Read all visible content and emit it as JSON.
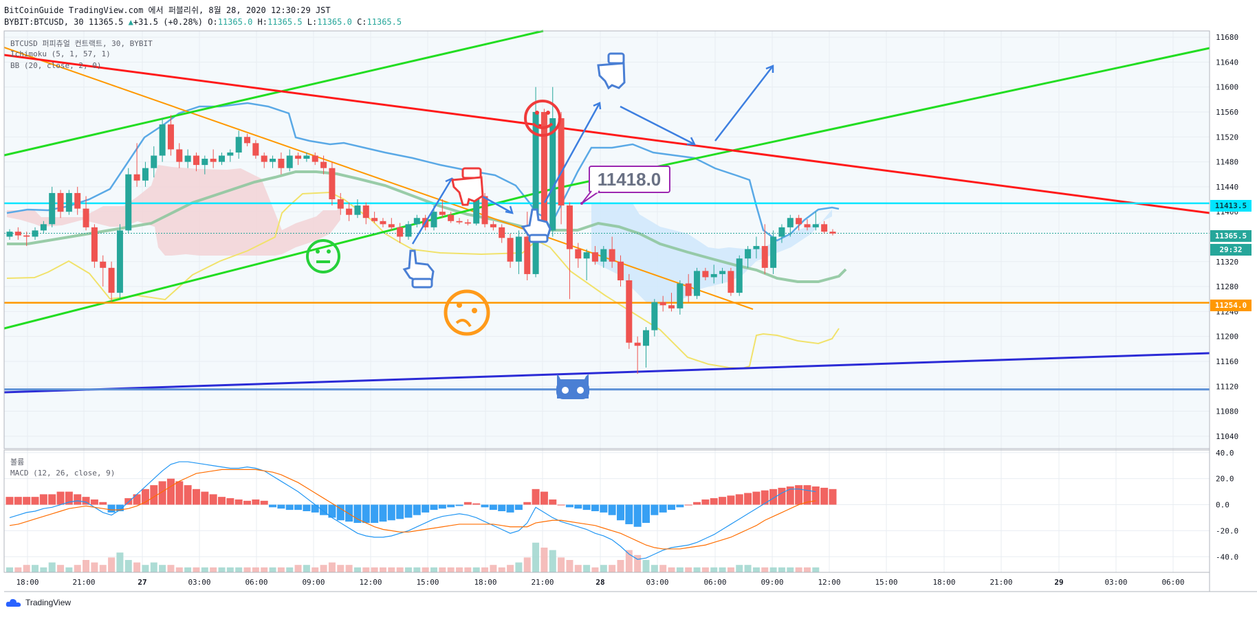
{
  "header": {
    "line1": "BitCoinGuide TradingView.com 에서 퍼블리쉬, 8월 28, 2020 12:30:29 JST",
    "symbol": "BYBIT:BTCUSD, 30",
    "last": "11365.5",
    "change": "+31.5 (+0.28%)",
    "o_label": "O:",
    "o": "11365.0",
    "h_label": "H:",
    "h": "11365.5",
    "l_label": "L:",
    "l": "11365.0",
    "c_label": "C:",
    "c": "11365.5"
  },
  "indicators": {
    "title": "BTCUSD 퍼피츄얼 컨트랙트, 30, BYBIT",
    "ichimoku": "Ichimoku (5, 1, 57, 1)",
    "bb": "BB (20, close, 2, 0)",
    "volume": "볼륨",
    "macd": "MACD (12, 26, close, 9)"
  },
  "footer": {
    "brand": "TradingView"
  },
  "colors": {
    "up": "#26a69a",
    "down": "#ef5350",
    "grid": "#e8edf2",
    "bg_tint": "#f4f9fc",
    "cyan": "#00e5ff",
    "orange": "#ff9800",
    "green_line": "#22dd22",
    "red_line": "#ff1a1a",
    "blue_line": "#2b2bd6",
    "bb": "#f1e26b",
    "cloud_red": "#f2d3d6",
    "cloud_blue": "#cfe8fb",
    "kijun": "#8fc79e",
    "bb_upper": "#5aa9e6",
    "macd": "#2196f3",
    "signal": "#ff6d00"
  },
  "chart_data": [
    {
      "type": "candlestick",
      "title": "BTCUSD 퍼피츄얼 컨트랙트, 30, BYBIT",
      "y_ticks": [
        11680,
        11640,
        11600,
        11560,
        11520,
        11480,
        11440,
        11400,
        11320,
        11280,
        11240,
        11200,
        11160,
        11120,
        11080,
        11040
      ],
      "ylim": [
        11020,
        11690
      ],
      "x_ticks": [
        "18:00",
        "21:00",
        "27",
        "03:00",
        "06:00",
        "09:00",
        "12:00",
        "15:00",
        "18:00",
        "21:00",
        "28",
        "03:00",
        "06:00",
        "09:00",
        "12:00",
        "15:00",
        "18:00",
        "21:00",
        "29",
        "03:00",
        "06:00"
      ],
      "price_labels": [
        {
          "text": "11413.5",
          "value": 11413.5,
          "color": "#00e5ff"
        },
        {
          "text": "11365.5",
          "value": 11365.5,
          "color": "#26a69a"
        },
        {
          "text": "29:32",
          "value": 11343,
          "color": "#26a69a"
        },
        {
          "text": "11254.0",
          "value": 11254,
          "color": "#ff9800"
        }
      ],
      "horizontal_lines": [
        {
          "value": 11413.5,
          "color": "#00e5ff"
        },
        {
          "value": 11254,
          "color": "#ff9800"
        },
        {
          "value": 11115,
          "color": "#5b8fd6"
        }
      ],
      "callout": {
        "text": "11418.0",
        "value": 11418
      },
      "candles": [
        [
          11360,
          11372,
          11355,
          11368
        ],
        [
          11368,
          11375,
          11355,
          11362
        ],
        [
          11362,
          11368,
          11345,
          11360
        ],
        [
          11360,
          11375,
          11355,
          11370
        ],
        [
          11370,
          11385,
          11365,
          11380
        ],
        [
          11380,
          11440,
          11375,
          11430
        ],
        [
          11430,
          11435,
          11390,
          11400
        ],
        [
          11400,
          11435,
          11395,
          11430
        ],
        [
          11430,
          11440,
          11395,
          11405
        ],
        [
          11405,
          11425,
          11370,
          11375
        ],
        [
          11375,
          11380,
          11310,
          11320
        ],
        [
          11320,
          11330,
          11280,
          11310
        ],
        [
          11310,
          11320,
          11255,
          11270
        ],
        [
          11270,
          11380,
          11260,
          11370
        ],
        [
          11370,
          11470,
          11365,
          11460
        ],
        [
          11460,
          11510,
          11440,
          11450
        ],
        [
          11450,
          11480,
          11440,
          11470
        ],
        [
          11470,
          11505,
          11455,
          11490
        ],
        [
          11490,
          11550,
          11480,
          11540
        ],
        [
          11540,
          11555,
          11490,
          11500
        ],
        [
          11500,
          11510,
          11470,
          11480
        ],
        [
          11480,
          11500,
          11470,
          11490
        ],
        [
          11490,
          11495,
          11465,
          11475
        ],
        [
          11475,
          11490,
          11460,
          11485
        ],
        [
          11485,
          11500,
          11470,
          11480
        ],
        [
          11480,
          11495,
          11475,
          11490
        ],
        [
          11490,
          11500,
          11480,
          11495
        ],
        [
          11495,
          11530,
          11485,
          11520
        ],
        [
          11520,
          11525,
          11505,
          11510
        ],
        [
          11510,
          11515,
          11485,
          11490
        ],
        [
          11490,
          11495,
          11470,
          11480
        ],
        [
          11480,
          11490,
          11470,
          11485
        ],
        [
          11485,
          11495,
          11460,
          11470
        ],
        [
          11470,
          11500,
          11465,
          11490
        ],
        [
          11490,
          11495,
          11475,
          11485
        ],
        [
          11485,
          11495,
          11480,
          11490
        ],
        [
          11490,
          11495,
          11475,
          11480
        ],
        [
          11480,
          11490,
          11460,
          11470
        ],
        [
          11470,
          11480,
          11410,
          11420
        ],
        [
          11420,
          11430,
          11395,
          11405
        ],
        [
          11405,
          11415,
          11385,
          11395
        ],
        [
          11395,
          11420,
          11390,
          11410
        ],
        [
          11410,
          11415,
          11380,
          11390
        ],
        [
          11390,
          11400,
          11382,
          11385
        ],
        [
          11385,
          11390,
          11375,
          11380
        ],
        [
          11380,
          11390,
          11370,
          11375
        ],
        [
          11375,
          11382,
          11350,
          11360
        ],
        [
          11360,
          11385,
          11355,
          11380
        ],
        [
          11380,
          11395,
          11375,
          11390
        ],
        [
          11390,
          11395,
          11370,
          11375
        ],
        [
          11375,
          11410,
          11370,
          11400
        ],
        [
          11400,
          11420,
          11390,
          11395
        ],
        [
          11395,
          11400,
          11382,
          11385
        ],
        [
          11385,
          11390,
          11380,
          11383
        ],
        [
          11383,
          11388,
          11378,
          11381
        ],
        [
          11381,
          11430,
          11378,
          11425
        ],
        [
          11425,
          11430,
          11375,
          11380
        ],
        [
          11380,
          11385,
          11370,
          11375
        ],
        [
          11375,
          11380,
          11350,
          11358
        ],
        [
          11358,
          11365,
          11310,
          11320
        ],
        [
          11320,
          11370,
          11300,
          11360
        ],
        [
          11360,
          11400,
          11290,
          11300
        ],
        [
          11300,
          11600,
          11295,
          11560
        ],
        [
          11560,
          11565,
          11360,
          11370
        ],
        [
          11370,
          11600,
          11360,
          11550
        ],
        [
          11550,
          11560,
          11380,
          11410
        ],
        [
          11410,
          11415,
          11260,
          11340
        ],
        [
          11340,
          11350,
          11310,
          11325
        ],
        [
          11325,
          11340,
          11290,
          11335
        ],
        [
          11335,
          11345,
          11315,
          11320
        ],
        [
          11320,
          11345,
          11310,
          11340
        ],
        [
          11340,
          11360,
          11310,
          11320
        ],
        [
          11320,
          11330,
          11280,
          11290
        ],
        [
          11290,
          11300,
          11180,
          11190
        ],
        [
          11190,
          11200,
          11140,
          11185
        ],
        [
          11185,
          11215,
          11150,
          11210
        ],
        [
          11210,
          11260,
          11200,
          11255
        ],
        [
          11255,
          11265,
          11240,
          11250
        ],
        [
          11250,
          11270,
          11240,
          11245
        ],
        [
          11245,
          11290,
          11235,
          11285
        ],
        [
          11285,
          11300,
          11255,
          11265
        ],
        [
          11265,
          11310,
          11260,
          11305
        ],
        [
          11305,
          11310,
          11290,
          11295
        ],
        [
          11295,
          11315,
          11285,
          11300
        ],
        [
          11300,
          11310,
          11285,
          11305
        ],
        [
          11305,
          11310,
          11265,
          11270
        ],
        [
          11270,
          11330,
          11265,
          11325
        ],
        [
          11325,
          11345,
          11310,
          11340
        ],
        [
          11340,
          11360,
          11325,
          11345
        ],
        [
          11345,
          11380,
          11300,
          11310
        ],
        [
          11310,
          11370,
          11300,
          11360
        ],
        [
          11360,
          11380,
          11350,
          11375
        ],
        [
          11375,
          11395,
          11360,
          11390
        ],
        [
          11390,
          11395,
          11370,
          11380
        ],
        [
          11380,
          11388,
          11370,
          11375
        ],
        [
          11375,
          11400,
          11370,
          11380
        ],
        [
          11380,
          11385,
          11365,
          11368
        ],
        [
          11368,
          11372,
          11362,
          11365
        ]
      ]
    },
    {
      "type": "bar",
      "title": "볼륨 / MACD (12, 26, close, 9)",
      "y_ticks": [
        40,
        20,
        0,
        -20,
        -40
      ],
      "ylim": [
        -52,
        42
      ],
      "histogram": [
        6,
        6,
        6,
        6,
        8,
        8,
        10,
        10,
        8,
        6,
        4,
        2,
        -6,
        -5,
        5,
        8,
        12,
        15,
        18,
        20,
        18,
        15,
        12,
        10,
        8,
        6,
        5,
        4,
        3,
        4,
        3,
        -2,
        -3,
        -4,
        -4,
        -5,
        -6,
        -8,
        -10,
        -12,
        -13,
        -14,
        -14,
        -14,
        -13,
        -12,
        -11,
        -10,
        -8,
        -6,
        -4,
        -3,
        -2,
        -1,
        2,
        1,
        -2,
        -4,
        -5,
        -6,
        -4,
        2,
        12,
        10,
        4,
        0,
        -2,
        -3,
        -4,
        -5,
        -6,
        -8,
        -12,
        -15,
        -17,
        -14,
        -8,
        -6,
        -4,
        -2,
        0,
        2,
        4,
        5,
        6,
        7,
        8,
        9,
        10,
        11,
        12,
        13,
        14,
        15,
        15,
        14,
        13,
        12
      ],
      "macd": [
        -10,
        -8,
        -6,
        -5,
        -3,
        -2,
        0,
        2,
        3,
        2,
        -2,
        -6,
        -8,
        -4,
        2,
        8,
        14,
        20,
        26,
        31,
        33,
        33,
        32,
        31,
        30,
        29,
        28,
        28,
        29,
        28,
        26,
        22,
        18,
        14,
        10,
        5,
        0,
        -5,
        -10,
        -14,
        -18,
        -22,
        -24,
        -25,
        -25,
        -24,
        -22,
        -20,
        -17,
        -14,
        -11,
        -9,
        -8,
        -7,
        -8,
        -10,
        -13,
        -16,
        -19,
        -22,
        -20,
        -14,
        -2,
        -6,
        -10,
        -13,
        -15,
        -17,
        -19,
        -22,
        -24,
        -27,
        -32,
        -38,
        -42,
        -41,
        -38,
        -35,
        -33,
        -32,
        -31,
        -29,
        -26,
        -23,
        -19,
        -15,
        -11,
        -7,
        -3,
        1,
        5,
        9,
        12,
        12,
        11,
        10
      ],
      "signal": [
        -16,
        -15,
        -13,
        -11,
        -9,
        -7,
        -5,
        -3,
        -2,
        -1,
        -2,
        -3,
        -4,
        -4,
        -3,
        -1,
        2,
        6,
        10,
        14,
        18,
        21,
        24,
        25,
        26,
        27,
        27,
        27,
        27,
        27,
        26,
        25,
        23,
        20,
        17,
        13,
        9,
        5,
        1,
        -3,
        -7,
        -11,
        -14,
        -17,
        -19,
        -20,
        -21,
        -21,
        -20,
        -19,
        -18,
        -17,
        -16,
        -15,
        -15,
        -15,
        -15,
        -15,
        -16,
        -17,
        -17,
        -17,
        -14,
        -13,
        -12,
        -12,
        -13,
        -14,
        -15,
        -16,
        -18,
        -20,
        -22,
        -25,
        -28,
        -31,
        -33,
        -34,
        -34,
        -34,
        -33,
        -32,
        -31,
        -29,
        -27,
        -25,
        -22,
        -19,
        -16,
        -12,
        -9,
        -6,
        -3,
        0,
        2,
        3
      ],
      "volume": [
        2,
        2,
        3,
        3,
        2,
        4,
        3,
        2,
        3,
        5,
        4,
        3,
        6,
        8,
        5,
        4,
        3,
        4,
        3,
        3,
        2,
        2,
        2,
        2,
        2,
        2,
        2,
        2,
        2,
        2,
        2,
        2,
        2,
        2,
        3,
        3,
        2,
        3,
        4,
        3,
        3,
        2,
        2,
        2,
        2,
        2,
        2,
        2,
        2,
        2,
        2,
        2,
        2,
        2,
        2,
        2,
        2,
        3,
        2,
        3,
        4,
        6,
        12,
        10,
        9,
        6,
        5,
        3,
        3,
        2,
        3,
        3,
        5,
        9,
        7,
        5,
        3,
        3,
        2,
        2,
        2,
        2,
        2,
        2,
        2,
        2,
        3,
        3,
        2,
        2,
        2,
        2,
        2,
        2,
        2,
        2
      ]
    }
  ]
}
